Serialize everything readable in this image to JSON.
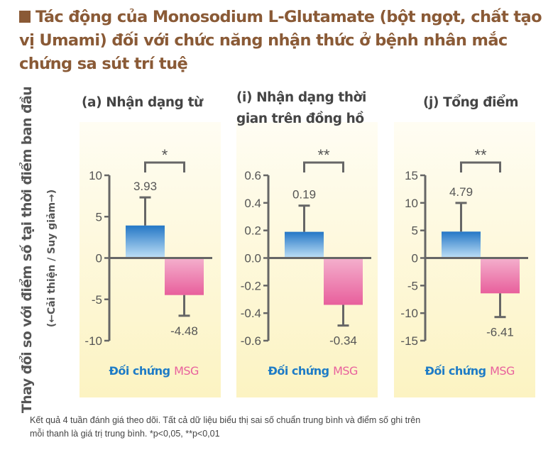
{
  "title": "Tác động của Monosodium L-Glutamate (bột ngọt, chất tạo vị Umami) đối với chức năng nhận thức ở bệnh nhân mắc chứng sa sút trí tuệ",
  "y_axis_label": "Thay đổi so với điểm số tại thời điểm ban đầu",
  "y_axis_sublabel": "(←Cải thiện / Suy giảm→)",
  "footnote_line1": "Kết quả 4 tuần đánh giá theo dõi. Tất cả dữ liệu biểu thị sai số chuẩn trung bình và điểm số ghi trên",
  "footnote_line2": "mỗi thanh là giá trị trung bình. *p<0,05, **p<0,01",
  "colors": {
    "control": "#1f7cc6",
    "msg": "#e8619d",
    "title": "#8a5a36",
    "panel_bg": "#fcf5c8"
  },
  "chart_data": [
    {
      "type": "bar",
      "title_lines": [
        "(a) Nhận dạng từ"
      ],
      "categories": [
        "Đối chứng",
        "MSG"
      ],
      "values": [
        3.93,
        -4.48
      ],
      "value_labels": [
        "3.93",
        "-4.48"
      ],
      "error_se": [
        3.4,
        2.5
      ],
      "ylim": [
        -10,
        10
      ],
      "yticks": [
        10,
        5,
        0,
        -5,
        -10
      ],
      "ytick_labels": [
        "10",
        "5",
        "0",
        "-5",
        "-10"
      ],
      "significance": "*"
    },
    {
      "type": "bar",
      "title_lines": [
        "(i) Nhận dạng thời",
        "gian trên đồng hồ"
      ],
      "categories": [
        "Đối chứng",
        "MSG"
      ],
      "values": [
        0.19,
        -0.34
      ],
      "value_labels": [
        "0.19",
        "-0.34"
      ],
      "error_se": [
        0.19,
        0.15
      ],
      "ylim": [
        -0.6,
        0.6
      ],
      "yticks": [
        0.6,
        0.4,
        0.2,
        0,
        -0.2,
        -0.4,
        -0.6
      ],
      "ytick_labels": [
        "0.6",
        "0.4",
        "0.2",
        "0.0",
        "-0.2",
        "-0.4",
        "-0.6"
      ],
      "significance": "**"
    },
    {
      "type": "bar",
      "title_lines": [
        "(j) Tổng điểm"
      ],
      "categories": [
        "Đối chứng",
        "MSG"
      ],
      "values": [
        4.79,
        -6.41
      ],
      "value_labels": [
        "4.79",
        "-6.41"
      ],
      "error_se": [
        5.2,
        4.3
      ],
      "ylim": [
        -15,
        15
      ],
      "yticks": [
        15,
        10,
        5,
        0,
        -5,
        -10,
        -15
      ],
      "ytick_labels": [
        "15",
        "10",
        "5",
        "0",
        "-5",
        "-10",
        "-15"
      ],
      "significance": "**"
    }
  ]
}
